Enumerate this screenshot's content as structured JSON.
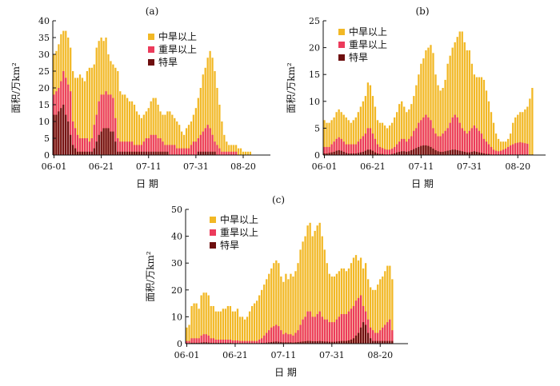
{
  "chart_data": [
    {
      "type": "bar",
      "panel_label": "(a)",
      "xlabel": "日 期",
      "ylabel": "面积/万km²",
      "ylim": [
        0,
        40
      ],
      "y_ticks": [
        0,
        5,
        10,
        15,
        20,
        25,
        30,
        35,
        40
      ],
      "x_ticks": [
        "06-01",
        "06-21",
        "07-11",
        "07-31",
        "08-20"
      ],
      "legend": [
        "中旱以上",
        "重旱以上",
        "特旱"
      ],
      "legend_position": "top-right",
      "series_colors": [
        "#f2b825",
        "#ec3b5b",
        "#6e0f0f"
      ],
      "first_date": "06-01",
      "series": [
        {
          "name": "中旱以上",
          "values": [
            30,
            31,
            33,
            36,
            37,
            37,
            35,
            32,
            25,
            23,
            23,
            24,
            23,
            22,
            25,
            26,
            26,
            27,
            32,
            34,
            35,
            34,
            35,
            30,
            28,
            27,
            26,
            25,
            19,
            18,
            18,
            17,
            16,
            16,
            15,
            13,
            12,
            11,
            12,
            13,
            14,
            16,
            17,
            17,
            15,
            13,
            12,
            12,
            13,
            13,
            12,
            11,
            10,
            9,
            7,
            6,
            8,
            9,
            10,
            12,
            14,
            17,
            20,
            24,
            26,
            29,
            31,
            29,
            25,
            20,
            15,
            10,
            6,
            4,
            3,
            3,
            3,
            3,
            2,
            2,
            1,
            1,
            1,
            1
          ]
        },
        {
          "name": "重旱以上",
          "values": [
            18,
            19,
            20,
            22,
            25,
            23,
            21,
            19,
            10,
            8,
            6,
            5,
            5,
            5,
            5,
            4,
            5,
            9,
            12,
            16,
            18,
            18,
            19,
            18,
            18,
            17,
            11,
            5,
            4,
            4,
            4,
            4,
            4,
            4,
            3,
            3,
            3,
            3,
            4,
            5,
            5,
            6,
            6,
            6,
            5,
            5,
            4,
            3,
            3,
            3,
            3,
            3,
            2,
            2,
            2,
            2,
            2,
            2,
            3,
            4,
            4,
            5,
            6,
            7,
            8,
            9,
            8,
            6,
            4,
            3,
            2,
            1,
            1,
            1,
            1,
            1,
            1,
            1,
            0,
            0,
            0,
            0,
            0,
            0
          ]
        },
        {
          "name": "特旱",
          "values": [
            12,
            12,
            13,
            14,
            15,
            12,
            10,
            6,
            3,
            2,
            1,
            1,
            1,
            1,
            1,
            1,
            1,
            2,
            4,
            6,
            7,
            8,
            8,
            8,
            7,
            7,
            4,
            1,
            1,
            1,
            1,
            1,
            1,
            1,
            1,
            1,
            1,
            1,
            1,
            1,
            1,
            1,
            1,
            1,
            1,
            1,
            1,
            1,
            1,
            0,
            0,
            0,
            0,
            0,
            0,
            0,
            0,
            0,
            0,
            0,
            0,
            1,
            1,
            1,
            1,
            1,
            1,
            1,
            1,
            0,
            0,
            0,
            0,
            0,
            0,
            0,
            0,
            0,
            0,
            0,
            0,
            0,
            0,
            0
          ]
        }
      ]
    },
    {
      "type": "bar",
      "panel_label": "(b)",
      "xlabel": "日 期",
      "ylabel": "面积/万km²",
      "ylim": [
        0,
        25
      ],
      "y_ticks": [
        0,
        5,
        10,
        15,
        20,
        25
      ],
      "x_ticks": [
        "06-01",
        "06-21",
        "07-11",
        "07-31",
        "08-20"
      ],
      "legend": [
        "中旱以上",
        "重旱以上",
        "特旱"
      ],
      "legend_position": "top-left",
      "series_colors": [
        "#f2b825",
        "#ec3b5b",
        "#6e0f0f"
      ],
      "first_date": "06-01",
      "series": [
        {
          "name": "中旱以上",
          "values": [
            6.5,
            6,
            6,
            6.5,
            7,
            8,
            8.5,
            8,
            7.5,
            7,
            6.5,
            6,
            6.5,
            7,
            8,
            9,
            10,
            11,
            13.5,
            13,
            11,
            9,
            6.5,
            6,
            6,
            5.5,
            5,
            5.5,
            6,
            7,
            8,
            9.5,
            10,
            9,
            8,
            8.5,
            9.5,
            11,
            13,
            15,
            17,
            18,
            19.5,
            20,
            20.5,
            19,
            15,
            13,
            12,
            12.5,
            14,
            17,
            18.5,
            20,
            21,
            22,
            23,
            23,
            21,
            19.5,
            19.5,
            17,
            15,
            14.5,
            14.5,
            14.5,
            14,
            12,
            10,
            8,
            6,
            4,
            3,
            2.5,
            2.5,
            2.5,
            3,
            4,
            6,
            7,
            7.5,
            8,
            8,
            8.5,
            9,
            10.5,
            12.5
          ]
        },
        {
          "name": "重旱以上",
          "values": [
            1.5,
            1.5,
            1.5,
            2,
            2.5,
            3,
            3.3,
            3,
            2.5,
            2,
            2,
            2,
            2,
            2,
            2.5,
            3,
            3.5,
            4,
            5,
            5,
            4,
            3,
            2,
            1.5,
            1.3,
            1.1,
            1,
            1,
            1.2,
            1.5,
            2,
            2.5,
            3,
            3,
            2.5,
            3,
            3.5,
            4.5,
            5,
            6,
            6.5,
            7,
            7.5,
            7,
            6.5,
            5,
            4,
            3.5,
            3.5,
            4,
            4.5,
            5,
            6,
            7,
            7.5,
            7,
            6,
            5,
            4.5,
            4,
            4.5,
            5,
            5.5,
            5,
            4.5,
            4,
            3,
            2.5,
            2,
            1.5,
            1,
            0.8,
            0.7,
            0.8,
            1,
            1.2,
            1.5,
            1.8,
            2,
            2.2,
            2.3,
            2.4,
            2.3,
            2.2,
            2.1
          ]
        },
        {
          "name": "特旱",
          "values": [
            0.3,
            0.3,
            0.4,
            0.5,
            0.6,
            0.8,
            0.9,
            0.8,
            0.6,
            0.4,
            0.3,
            0.3,
            0.3,
            0.3,
            0.4,
            0.5,
            0.6,
            0.8,
            1,
            1,
            0.8,
            0.5,
            0.3,
            0.2,
            0.2,
            0.1,
            0.1,
            0.1,
            0.2,
            0.3,
            0.5,
            0.6,
            0.7,
            0.7,
            0.6,
            0.7,
            0.9,
            1.1,
            1.3,
            1.5,
            1.7,
            1.8,
            1.8,
            1.7,
            1.5,
            1.2,
            0.9,
            0.7,
            0.6,
            0.6,
            0.7,
            0.8,
            0.9,
            1,
            1,
            0.9,
            0.8,
            0.7,
            0.6,
            0.5,
            0.5,
            0.6,
            0.7,
            0.6,
            0.5,
            0.4,
            0.3,
            0.2,
            0.2,
            0.1,
            0.1,
            0.1,
            0.1,
            0.1,
            0.1,
            0.1,
            0.1,
            0.1,
            0.1,
            0.1,
            0.1,
            0.1,
            0.1,
            0.1,
            0.1,
            0.1,
            0.1
          ]
        }
      ]
    },
    {
      "type": "bar",
      "panel_label": "(c)",
      "xlabel": "日 期",
      "ylabel": "面积/万km²",
      "ylim": [
        0,
        50
      ],
      "y_ticks": [
        0,
        10,
        20,
        30,
        40,
        50
      ],
      "x_ticks": [
        "06-01",
        "06-21",
        "07-11",
        "07-31",
        "08-20"
      ],
      "legend": [
        "中旱以上",
        "重旱以上",
        "特旱"
      ],
      "legend_position": "top-left",
      "series_colors": [
        "#f2b825",
        "#ec3b5b",
        "#6e0f0f"
      ],
      "first_date": "06-01",
      "series": [
        {
          "name": "中旱以上",
          "values": [
            6,
            7,
            14,
            15,
            15,
            13,
            18,
            19,
            19,
            18,
            14,
            14,
            12,
            12,
            12,
            13,
            13,
            14,
            14,
            12,
            12,
            13,
            10,
            10,
            9,
            10,
            12,
            14,
            15,
            16,
            18,
            20,
            22,
            24,
            26,
            28,
            30,
            31,
            30,
            25,
            23,
            26,
            24,
            26,
            25,
            27,
            30,
            35,
            38,
            40,
            44,
            45,
            40,
            42,
            44,
            45,
            40,
            35,
            30,
            26,
            25,
            25,
            26,
            27,
            28,
            28,
            27,
            28,
            30,
            32,
            33,
            31,
            32,
            28,
            30,
            24,
            21,
            20,
            20,
            22,
            24,
            25,
            27,
            29,
            29,
            24
          ]
        },
        {
          "name": "重旱以上",
          "values": [
            1,
            1,
            2,
            2,
            2,
            2,
            3,
            3.5,
            3.5,
            3,
            2,
            2,
            1.5,
            1.5,
            1.5,
            1.5,
            1.5,
            1.5,
            1.5,
            1.2,
            1.2,
            1.2,
            1,
            1,
            1,
            1,
            1,
            1,
            1,
            1,
            1.5,
            2,
            3,
            4,
            5,
            6,
            6.5,
            7,
            6.5,
            5,
            3.5,
            4,
            3.5,
            3.5,
            3,
            4,
            5,
            7,
            9,
            10,
            12,
            12,
            10,
            10,
            11,
            12,
            10,
            9,
            9,
            8,
            8,
            8,
            9,
            10,
            11,
            11,
            11,
            12,
            13,
            14,
            16,
            17,
            18,
            14,
            12,
            9,
            6,
            5,
            4,
            4,
            5,
            6,
            7,
            8,
            9,
            5
          ]
        },
        {
          "name": "特旱",
          "values": [
            0.2,
            0.2,
            0.3,
            0.3,
            0.3,
            0.3,
            0.4,
            0.5,
            0.5,
            0.4,
            0.3,
            0.3,
            0.3,
            0.3,
            0.3,
            0.3,
            0.3,
            0.3,
            0.3,
            0.2,
            0.2,
            0.2,
            0.2,
            0.2,
            0.2,
            0.2,
            0.2,
            0.2,
            0.2,
            0.2,
            0.2,
            0.3,
            0.3,
            0.4,
            0.5,
            0.6,
            0.7,
            0.8,
            0.7,
            0.6,
            0.5,
            0.5,
            0.5,
            0.5,
            0.4,
            0.5,
            0.6,
            0.7,
            0.8,
            0.9,
            1,
            1,
            0.9,
            0.9,
            0.9,
            1,
            0.9,
            0.8,
            0.8,
            0.7,
            0.7,
            0.7,
            0.8,
            0.9,
            1,
            1,
            1,
            1.2,
            1.5,
            2,
            3,
            4,
            6,
            8,
            7,
            4,
            2,
            1,
            1,
            1,
            1,
            1,
            1,
            1,
            1,
            1
          ]
        }
      ]
    }
  ]
}
